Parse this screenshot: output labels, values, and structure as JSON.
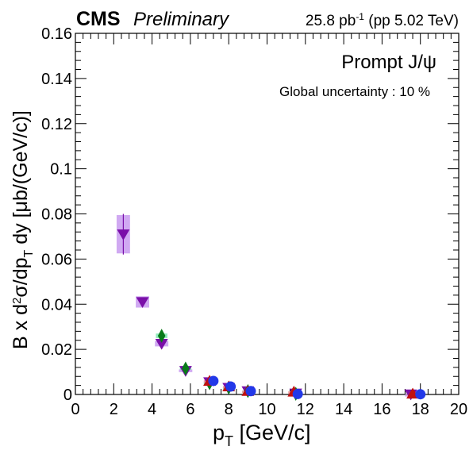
{
  "header": {
    "experiment": "CMS",
    "status": "Preliminary",
    "lumi_value": "25.8 pb",
    "lumi_exp": "-1",
    "lumi_rest": " (pp 5.02 TeV)"
  },
  "annotations": {
    "process": "Prompt J/ψ",
    "global_uncertainty": "Global uncertainty : 10 %"
  },
  "colors": {
    "purple": "#7a0fa8",
    "purple_box": "#c89af0",
    "green": "#0a7a1a",
    "green_box": "#7fe8b0",
    "red": "#c01010",
    "red_box": "#f0a0a0",
    "blue": "#2238e8",
    "blue_box": "#9fb0f8"
  },
  "chart_data": {
    "type": "scatter",
    "xlabel_main": "p",
    "xlabel_sub": "T",
    "xlabel_rest": " [GeV/c]",
    "ylabel": "B x d²σ/dp_T dy [μb/(GeV/c)]",
    "xlim": [
      0,
      20
    ],
    "ylim": [
      0,
      0.16
    ],
    "x_ticks": [
      "0",
      "2",
      "4",
      "6",
      "8",
      "10",
      "12",
      "14",
      "16",
      "18",
      "20"
    ],
    "y_ticks": [
      "0",
      "0.02",
      "0.04",
      "0.06",
      "0.08",
      "0.1",
      "0.12",
      "0.14",
      "0.16"
    ],
    "series": [
      {
        "marker": "triangle-down",
        "color_key": "purple",
        "points": [
          {
            "x": 2.5,
            "y": 0.071,
            "stat": 0.009,
            "syst": 0.0085,
            "xw": 0.35
          },
          {
            "x": 3.5,
            "y": 0.041,
            "stat": 0.001,
            "syst": 0.0025,
            "xw": 0.35
          },
          {
            "x": 4.5,
            "y": 0.0225,
            "stat": 0.001,
            "syst": 0.0012,
            "xw": 0.35
          },
          {
            "x": 5.75,
            "y": 0.0105,
            "stat": 0.0005,
            "syst": 0.0006,
            "xw": 0.35
          },
          {
            "x": 7.0,
            "y": 0.0055,
            "stat": 0.0003,
            "syst": 0.0004,
            "xw": 0.3
          },
          {
            "x": 8.0,
            "y": 0.003,
            "stat": 0.0002,
            "syst": 0.0003,
            "xw": 0.3
          },
          {
            "x": 9.0,
            "y": 0.0015,
            "stat": 0.0001,
            "syst": 0.0002,
            "xw": 0.3
          },
          {
            "x": 11.5,
            "y": 0.0005,
            "stat": 0.0001,
            "syst": 0.0001,
            "xw": 0.3
          },
          {
            "x": 17.5,
            "y": 0.0001,
            "stat": 5e-05,
            "syst": 5e-05,
            "xw": 0.3
          }
        ]
      },
      {
        "marker": "diamond",
        "color_key": "green",
        "points": [
          {
            "x": 4.5,
            "y": 0.026,
            "stat": 0.001,
            "syst": 0.001,
            "xw": 0.3
          },
          {
            "x": 5.75,
            "y": 0.0115,
            "stat": 0.0005,
            "syst": 0.0005,
            "xw": 0.3
          },
          {
            "x": 7.0,
            "y": 0.005,
            "stat": 0.0003,
            "syst": 0.0003,
            "xw": 0.3
          },
          {
            "x": 8.0,
            "y": 0.003,
            "stat": 0.0002,
            "syst": 0.0002,
            "xw": 0.3
          },
          {
            "x": 9.0,
            "y": 0.0015,
            "stat": 0.0001,
            "syst": 0.0001,
            "xw": 0.3
          },
          {
            "x": 11.5,
            "y": 0.0003,
            "stat": 0.0001,
            "syst": 0.0001,
            "xw": 0.3
          }
        ]
      },
      {
        "marker": "triangle-up",
        "color_key": "red",
        "points": [
          {
            "x": 7.0,
            "y": 0.006,
            "stat": 0.0003,
            "syst": 0.0004,
            "xw": 0.3
          },
          {
            "x": 8.0,
            "y": 0.0035,
            "stat": 0.0002,
            "syst": 0.0003,
            "xw": 0.3
          },
          {
            "x": 9.0,
            "y": 0.0015,
            "stat": 0.0001,
            "syst": 0.0002,
            "xw": 0.3
          },
          {
            "x": 11.4,
            "y": 0.0012,
            "stat": 0.0001,
            "syst": 0.0002,
            "xw": 0.3
          },
          {
            "x": 17.6,
            "y": 0.0003,
            "stat": 0.0001,
            "syst": 0.0001,
            "xw": 0.3
          }
        ]
      },
      {
        "marker": "circle",
        "color_key": "blue",
        "points": [
          {
            "x": 7.2,
            "y": 0.006,
            "stat": 0.0003,
            "syst": 0.0003,
            "xw": 0.2
          },
          {
            "x": 8.1,
            "y": 0.0035,
            "stat": 0.0002,
            "syst": 0.0002,
            "xw": 0.2
          },
          {
            "x": 9.15,
            "y": 0.0015,
            "stat": 0.0001,
            "syst": 0.0001,
            "xw": 0.2
          },
          {
            "x": 11.6,
            "y": 0.0002,
            "stat": 0.0001,
            "syst": 0.0001,
            "xw": 0.2
          },
          {
            "x": 18.0,
            "y": 0.0001,
            "stat": 5e-05,
            "syst": 5e-05,
            "xw": 0.2
          }
        ]
      }
    ]
  }
}
